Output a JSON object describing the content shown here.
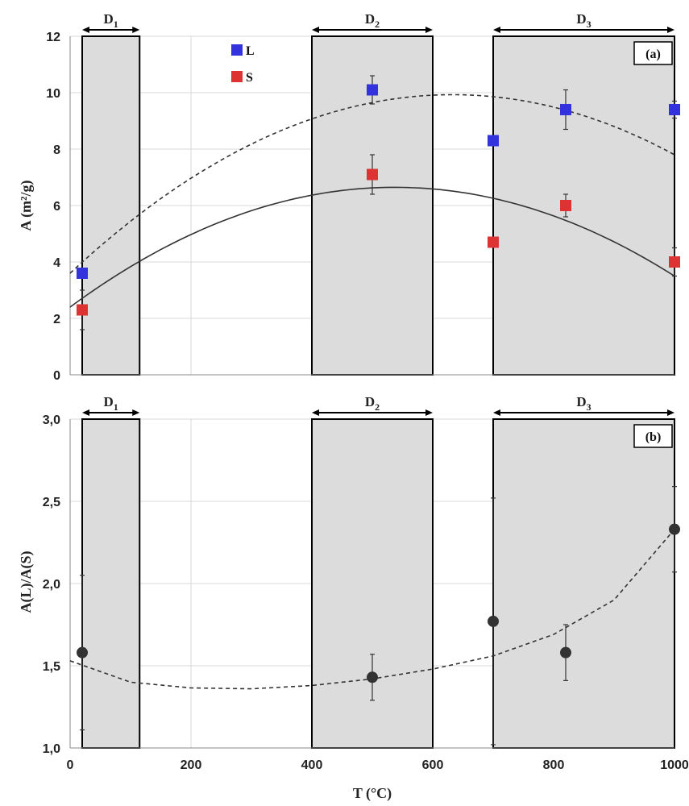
{
  "chart_data": [
    {
      "type": "scatter",
      "panel_label": "(a)",
      "xlabel": "",
      "ylabel": "A (m²/g)",
      "xlim": [
        0,
        1000
      ],
      "ylim": [
        0,
        12
      ],
      "y_ticks": [
        "0",
        "2",
        "4",
        "6",
        "8",
        "10",
        "12"
      ],
      "grid": true,
      "legend_position": "top-left",
      "domains": [
        {
          "name": "D",
          "sub": "1",
          "range": [
            20,
            115
          ]
        },
        {
          "name": "D",
          "sub": "2",
          "range": [
            400,
            600
          ]
        },
        {
          "name": "D",
          "sub": "3",
          "range": [
            700,
            1000
          ]
        }
      ],
      "series": [
        {
          "name": "L",
          "color": "#3333dd",
          "x": [
            20,
            500,
            700,
            820,
            1000
          ],
          "y": [
            3.6,
            10.1,
            8.3,
            9.4,
            9.4
          ],
          "err": [
            0.0,
            0.5,
            0.0,
            0.7,
            0.3
          ],
          "trend": "dashed",
          "trend_coeffs": [
            3.6,
            0.02,
            -1.58e-05
          ]
        },
        {
          "name": "S",
          "color": "#dd3333",
          "x": [
            20,
            500,
            700,
            820,
            1000
          ],
          "y": [
            2.3,
            7.1,
            4.7,
            6.0,
            4.0
          ],
          "err": [
            0.7,
            0.7,
            0.0,
            0.4,
            0.5
          ],
          "trend": "solid",
          "trend_coeffs": [
            2.4,
            0.0158,
            -1.47e-05
          ]
        }
      ]
    },
    {
      "type": "scatter",
      "panel_label": "(b)",
      "xlabel": "T (°C)",
      "ylabel": "A(L)/A(S)",
      "xlim": [
        0,
        1000
      ],
      "ylim": [
        1.0,
        3.0
      ],
      "x_ticks": [
        "0",
        "200",
        "400",
        "600",
        "800",
        "1000"
      ],
      "y_ticks": [
        "1,0",
        "1,5",
        "2,0",
        "2,5",
        "3,0"
      ],
      "grid": true,
      "domains": [
        {
          "name": "D",
          "sub": "1",
          "range": [
            20,
            115
          ]
        },
        {
          "name": "D",
          "sub": "2",
          "range": [
            400,
            600
          ]
        },
        {
          "name": "D",
          "sub": "3",
          "range": [
            700,
            1000
          ]
        }
      ],
      "series": [
        {
          "name": "",
          "color": "#333333",
          "x": [
            20,
            500,
            700,
            820,
            1000
          ],
          "y": [
            1.58,
            1.43,
            1.77,
            1.58,
            2.33
          ],
          "err": [
            0.47,
            0.14,
            0.75,
            0.17,
            0.26
          ],
          "trend": "dashed",
          "trend_points": [
            [
              0,
              1.53
            ],
            [
              100,
              1.4
            ],
            [
              200,
              1.365
            ],
            [
              300,
              1.36
            ],
            [
              400,
              1.38
            ],
            [
              500,
              1.42
            ],
            [
              600,
              1.48
            ],
            [
              700,
              1.56
            ],
            [
              800,
              1.69
            ],
            [
              900,
              1.9
            ],
            [
              1000,
              2.33
            ]
          ]
        }
      ]
    }
  ]
}
